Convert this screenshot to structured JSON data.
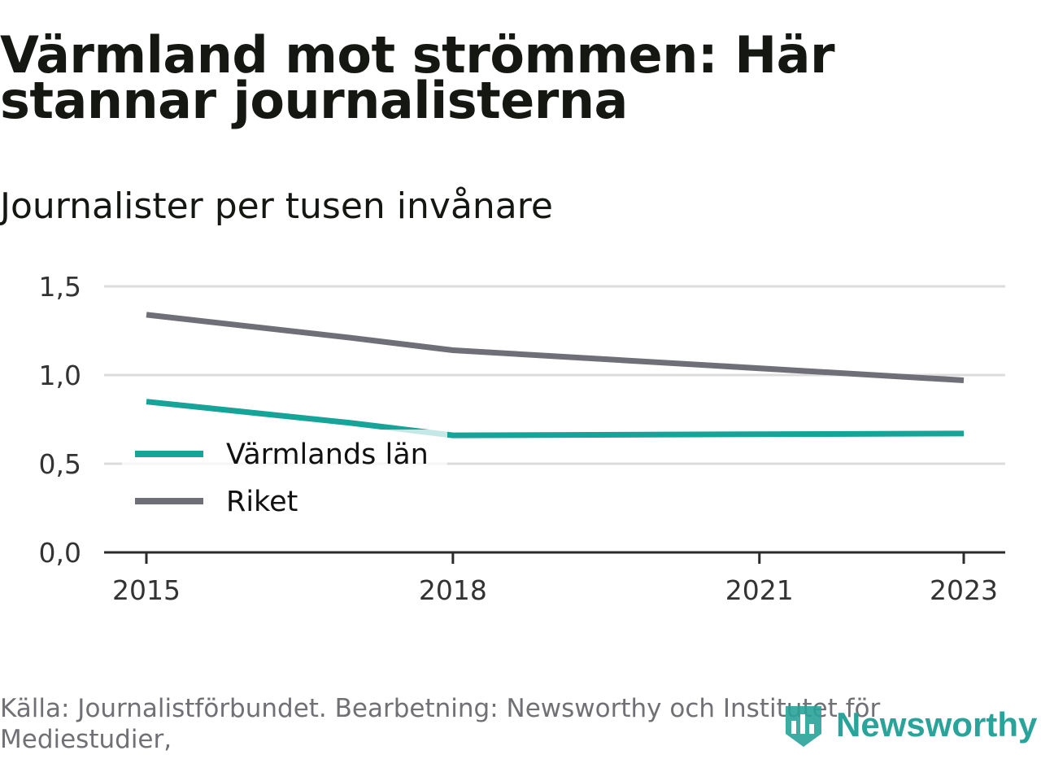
{
  "title": "Värmland mot strömmen: Här stannar journalisterna",
  "subtitle": "Journalister per tusen invånare",
  "source": "Källa: Journalistförbundet. Bearbetning: Newsworthy och Institutet för Mediestudier,",
  "brand": {
    "name": "Newsworthy",
    "icon": "newsworthy-logo-icon",
    "color": "#2aa39a"
  },
  "chart_data": {
    "type": "line",
    "x": [
      2015,
      2017,
      2018,
      2023
    ],
    "x_ticks": [
      "2015",
      "2018",
      "2021",
      "2023"
    ],
    "y_ticks": [
      "0,0",
      "0,5",
      "1,0",
      "1,5"
    ],
    "ylim": [
      0,
      1.5
    ],
    "grid": true,
    "legend_position": "left, inside plot",
    "series": [
      {
        "name": "Värmlands län",
        "color": "#16a398",
        "values": [
          0.85,
          0.73,
          0.66,
          0.67
        ]
      },
      {
        "name": "Riket",
        "color": "#6f6f78",
        "values": [
          1.34,
          1.21,
          1.14,
          0.97
        ]
      }
    ]
  }
}
